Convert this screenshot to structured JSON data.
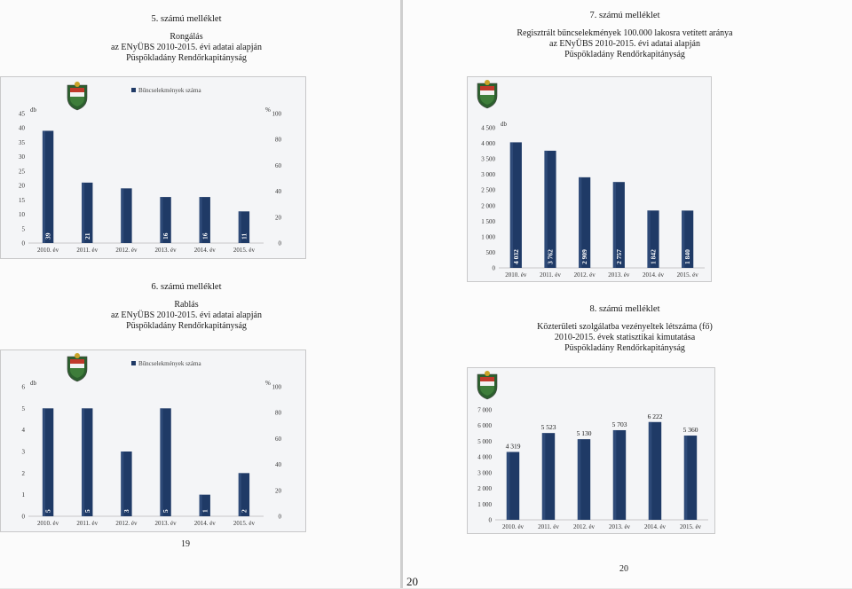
{
  "page_left": {
    "chart5": {
      "annex": "5. számú melléklet",
      "title_lines": [
        "Rongálás",
        "az ENyÜBS 2010-2015. évi adatai alapján",
        "Püspökladány Rendőrkapitányság"
      ]
    },
    "chart6": {
      "annex": "6. számú melléklet",
      "title_lines": [
        "Rablás",
        "az ENyÜBS 2010-2015. évi adatai alapján",
        "Püspökladány Rendőrkapitányság"
      ]
    },
    "page_number": "19"
  },
  "page_right": {
    "chart7": {
      "annex": "7. számú melléklet",
      "title_lines": [
        "Regisztrált bűncselekmények 100.000 lakosra vetített aránya",
        "az ENyÜBS 2010-2015. évi adatai alapján",
        "Püspökladány Rendőrkapitányság"
      ]
    },
    "chart8": {
      "annex": "8. számú melléklet",
      "title_lines": [
        "Közterületi szolgálatba vezényeltek létszáma (fő)",
        "2010-2015. évek statisztikai kimutatása",
        "Püspökladány Rendőrkapitányság"
      ]
    },
    "page_number": "20"
  },
  "scan_page_number": "20",
  "colors": {
    "bar": "#1f3a66",
    "bar_light": "#3d5a8a",
    "frame": "#bdbdbd"
  },
  "chart_data": [
    {
      "id": "chart5",
      "type": "bar",
      "categories": [
        "2010. év",
        "2011. év",
        "2012. év",
        "2013. év",
        "2014. év",
        "2015. év"
      ],
      "series": [
        {
          "name": "Bűncselekmények száma",
          "values": [
            39,
            21,
            19,
            16,
            16,
            11
          ]
        }
      ],
      "value_labels": [
        "39",
        "21",
        "",
        "16",
        "16",
        "11"
      ],
      "ylabel": "db",
      "ylim": [
        0,
        45
      ],
      "yticks": [
        0,
        5,
        10,
        15,
        20,
        25,
        30,
        35,
        40,
        45
      ],
      "y2label": "%",
      "y2ticks": [
        0,
        20,
        40,
        60,
        80,
        100
      ],
      "value_label_position": "inside",
      "legend": "top-center"
    },
    {
      "id": "chart6",
      "type": "bar",
      "categories": [
        "2010. év",
        "2011. év",
        "2012. év",
        "2013. év",
        "2014. év",
        "2015. év"
      ],
      "series": [
        {
          "name": "Bűncselekmények száma",
          "values": [
            5,
            5,
            3,
            5,
            1,
            2
          ]
        }
      ],
      "value_labels": [
        "5",
        "5",
        "3",
        "5",
        "1",
        "2"
      ],
      "ylabel": "db",
      "ylim": [
        0,
        6
      ],
      "yticks": [
        0,
        1,
        2,
        3,
        4,
        5,
        6
      ],
      "y2label": "%",
      "y2ticks": [
        0,
        20,
        40,
        60,
        80,
        100
      ],
      "value_label_position": "inside",
      "legend": "top-center"
    },
    {
      "id": "chart7",
      "type": "bar",
      "categories": [
        "2010. év",
        "2011. év",
        "2012. év",
        "2013. év",
        "2014. év",
        "2015. év"
      ],
      "series": [
        {
          "values": [
            4032,
            3762,
            2909,
            2757,
            1842,
            1840
          ]
        }
      ],
      "value_labels": [
        "4 032",
        "3 762",
        "2 909",
        "2 757",
        "1 842",
        "1 840"
      ],
      "ylabel": "db",
      "ylim": [
        0,
        4500
      ],
      "yticks": [
        0,
        500,
        1000,
        1500,
        2000,
        2500,
        3000,
        3500,
        4000,
        4500
      ],
      "ytick_labels": [
        "0",
        "500",
        "1 000",
        "1 500",
        "2 000",
        "2 500",
        "3 000",
        "3 500",
        "4 000",
        "4 500"
      ],
      "value_label_position": "inside"
    },
    {
      "id": "chart8",
      "type": "bar",
      "categories": [
        "2010. év",
        "2011. év",
        "2012. év",
        "2013. év",
        "2014. év",
        "2015. év"
      ],
      "series": [
        {
          "values": [
            4319,
            5523,
            5130,
            5703,
            6222,
            5360
          ]
        }
      ],
      "value_labels": [
        "4 319",
        "5 523",
        "5 130",
        "5 703",
        "6 222",
        "5 360"
      ],
      "ylim": [
        0,
        7000
      ],
      "yticks": [
        0,
        1000,
        2000,
        3000,
        4000,
        5000,
        6000,
        7000
      ],
      "ytick_labels": [
        "0",
        "1 000",
        "2 000",
        "3 000",
        "4 000",
        "5 000",
        "6 000",
        "7 000"
      ],
      "value_label_position": "above"
    }
  ]
}
